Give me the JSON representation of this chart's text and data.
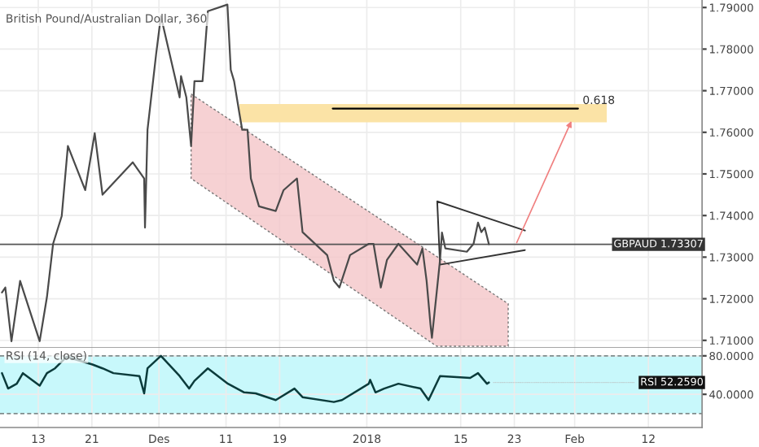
{
  "chart_data": [
    {
      "type": "line",
      "title": "British Pound/Australian Dollar, 360",
      "xlim": [
        "2017-11-07T07:00",
        "2018-02-20T00:00"
      ],
      "ylim": [
        1.7082,
        1.7918
      ],
      "xticks": [
        {
          "value": "2017-11-13",
          "label": null
        },
        {
          "value": "2017-11-21",
          "label": null
        },
        {
          "value": "2017-12-01",
          "label": null
        },
        {
          "value": "2017-12-11",
          "label": null
        },
        {
          "value": "2017-12-19",
          "label": null
        },
        {
          "value": "2018-01-01",
          "label": null
        },
        {
          "value": "2018-01-15",
          "label": null
        },
        {
          "value": "2018-01-23",
          "label": null
        },
        {
          "value": "2018-02-01",
          "label": null
        },
        {
          "value": "2018-02-12",
          "label": null
        }
      ],
      "yticks": [
        {
          "value": 1.71,
          "label": "1.71000"
        },
        {
          "value": 1.72,
          "label": "1.72000"
        },
        {
          "value": 1.73,
          "label": "1.73000"
        },
        {
          "value": 1.74,
          "label": "1.74000"
        },
        {
          "value": 1.75,
          "label": "1.75000"
        },
        {
          "value": 1.76,
          "label": "1.76000"
        },
        {
          "value": 1.77,
          "label": "1.77000"
        },
        {
          "value": 1.78,
          "label": "1.78000"
        },
        {
          "value": 1.79,
          "label": "1.79000"
        }
      ],
      "tick_labels": "y",
      "grid": true,
      "series": [
        {
          "color": "#4a4a4a",
          "x": [
            "2017-11-07T14:00",
            "2017-11-08T02:00",
            "2017-11-09T00:00",
            "2017-11-10T07:00",
            "2017-11-13T05:00",
            "2017-11-14T07:00",
            "2017-11-15T05:00",
            "2017-11-16T12:00",
            "2017-11-17T10:00",
            "2017-11-20T00:00",
            "2017-11-21T10:00",
            "2017-11-22T14:00",
            "2017-11-27T02:00",
            "2017-11-28T19:00",
            "2017-11-28T22:00",
            "2017-11-29T07:00",
            "2017-11-30T14:00",
            "2017-12-01T07:00",
            "2017-12-04T02:00",
            "2017-12-04T07:00",
            "2017-12-05T02:00",
            "2017-12-05T19:00",
            "2017-12-06T07:00",
            "2017-12-07T12:00",
            "2017-12-08T07:00",
            "2017-12-11T05:00",
            "2017-12-11T17:00",
            "2017-12-12T05:00",
            "2017-12-13T00:00",
            "2017-12-13T10:00",
            "2017-12-14T05:00",
            "2017-12-14T17:00",
            "2017-12-15T22:00",
            "2017-12-18T10:00",
            "2017-12-19T14:00",
            "2017-12-20T17:00",
            "2017-12-21T14:00",
            "2017-12-22T10:00",
            "2017-12-26T02:00",
            "2017-12-27T02:00",
            "2017-12-27T22:00",
            "2017-12-29T12:00",
            "2018-01-01T07:00",
            "2018-01-02T00:00",
            "2018-01-03T02:00",
            "2018-01-04T00:00",
            "2018-01-05T17:00",
            "2018-01-08T12:00",
            "2018-01-09T07:00",
            "2018-01-09T22:00",
            "2018-01-10T12:00",
            "2018-01-10T17:00",
            "2018-01-11T10:00",
            "2018-01-11T22:00",
            "2018-01-12T05:00",
            "2018-01-12T17:00",
            "2018-01-15T22:00",
            "2018-01-16T22:00",
            "2018-01-17T14:00",
            "2018-01-18T02:00",
            "2018-01-18T14:00",
            "2018-01-19T05:00"
          ],
          "values": [
            1.7215,
            1.7227,
            1.7098,
            1.7243,
            1.7098,
            1.7204,
            1.7332,
            1.7399,
            1.7567,
            1.7461,
            1.7598,
            1.745,
            1.7528,
            1.7489,
            1.7371,
            1.7606,
            1.7789,
            1.7879,
            1.7684,
            1.7735,
            1.7684,
            1.7567,
            1.7723,
            1.7723,
            1.7891,
            1.7907,
            1.775,
            1.7723,
            1.7645,
            1.7606,
            1.7606,
            1.7489,
            1.7422,
            1.7411,
            1.7461,
            1.7477,
            1.7489,
            1.736,
            1.7305,
            1.7243,
            1.7227,
            1.7305,
            1.7332,
            1.7332,
            1.7227,
            1.7293,
            1.7332,
            1.7282,
            1.7321,
            1.7243,
            1.7137,
            1.7106,
            1.7215,
            1.7293,
            1.7359,
            1.7321,
            1.7313,
            1.7332,
            1.7383,
            1.736,
            1.7371,
            1.7331
          ]
        },
        {
          "color": "#000000",
          "x": [
            "2017-12-26T22:00",
            "2018-02-01T12:00"
          ],
          "values": [
            1.7657,
            1.7657
          ]
        }
      ],
      "ref_lines": [
        {
          "axis": "y",
          "value": 1.73307,
          "label": "GBPAUD 1.73307",
          "color": "#555555"
        }
      ],
      "annotations": [
        {
          "text": "0.618",
          "x": "2018-02-01T12:00",
          "y": 1.7657
        }
      ]
    },
    {
      "type": "line",
      "title": "RSI (14, close)",
      "xlim": [
        "2017-11-07T07:00",
        "2018-02-20T00:00"
      ],
      "ylim": [
        5.5,
        88.3
      ],
      "xticks": [
        {
          "value": "2017-11-13",
          "label": "13"
        },
        {
          "value": "2017-11-21",
          "label": "21"
        },
        {
          "value": "2017-12-01",
          "label": "Des"
        },
        {
          "value": "2017-12-11",
          "label": "11"
        },
        {
          "value": "2017-12-19",
          "label": "19"
        },
        {
          "value": "2018-01-01",
          "label": "2018"
        },
        {
          "value": "2018-01-15",
          "label": "15"
        },
        {
          "value": "2018-01-23",
          "label": "23"
        },
        {
          "value": "2018-02-01",
          "label": "Feb"
        },
        {
          "value": "2018-02-12",
          "label": "12"
        }
      ],
      "yticks": [
        {
          "value": 80,
          "label": "80.0000"
        },
        {
          "value": 40,
          "label": "40.0000"
        }
      ],
      "grid": true,
      "series": [
        {
          "color": "#0b3b3b",
          "x": [
            "2017-11-07T14:00",
            "2017-11-08T12:00",
            "2017-11-09T19:00",
            "2017-11-10T17:00",
            "2017-11-13T05:00",
            "2017-11-14T07:00",
            "2017-11-15T12:00",
            "2017-11-17T05:00",
            "2017-11-21T02:00",
            "2017-11-22T14:00",
            "2017-11-24T05:00",
            "2017-11-28T02:00",
            "2017-11-28T19:00",
            "2017-11-29T07:00",
            "2017-12-01T07:00",
            "2017-12-04T02:00",
            "2017-12-05T12:00",
            "2017-12-06T07:00",
            "2017-12-08T07:00",
            "2017-12-11T07:00",
            "2017-12-13T17:00",
            "2017-12-15T10:00",
            "2017-12-18T10:00",
            "2017-12-21T05:00",
            "2017-12-22T10:00",
            "2017-12-27T02:00",
            "2017-12-28T07:00",
            "2018-01-01T07:00",
            "2018-01-01T12:00",
            "2018-01-02T07:00",
            "2018-01-03T14:00",
            "2018-01-05T17:00",
            "2018-01-09T00:00",
            "2018-01-10T05:00",
            "2018-01-11T22:00",
            "2018-01-16T10:00",
            "2018-01-17T14:00",
            "2018-01-18T22:00",
            "2018-01-19T05:00"
          ],
          "values": [
            62,
            46,
            51,
            62,
            49,
            62,
            67,
            79,
            71,
            67,
            62,
            59,
            41,
            67,
            80,
            59,
            46,
            54,
            67,
            51,
            42,
            41,
            34,
            46,
            37,
            32,
            34,
            51,
            55,
            42,
            46,
            51,
            46,
            34,
            59,
            57,
            62,
            51,
            52.259
          ]
        }
      ],
      "bands": [
        {
          "axis": "y",
          "from": 20,
          "to": 80,
          "color": "#c8f8fb"
        }
      ],
      "ref_lines": [
        {
          "axis": "y",
          "value": 80,
          "color": "#7f8c8c",
          "line_style": "dashed"
        },
        {
          "axis": "y",
          "value": 20,
          "color": "#7f8c8c",
          "line_style": "dashed"
        }
      ],
      "annotations": [
        {
          "text": "RSI 52.2590",
          "x": "2018-01-19T05:00",
          "y": 52.259
        }
      ]
    }
  ]
}
